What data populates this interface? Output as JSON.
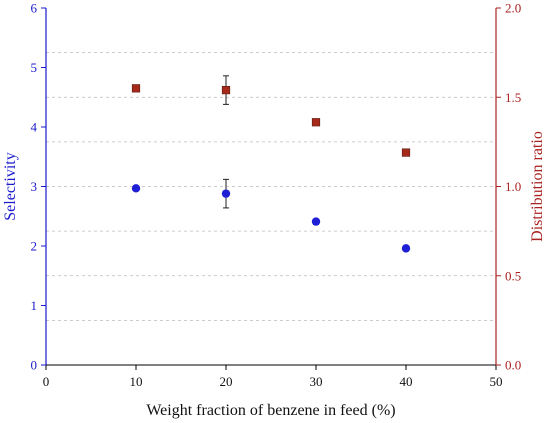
{
  "chart_data": {
    "type": "scatter",
    "title": "",
    "xlabel": "Weight fraction of benzene in feed (%)",
    "ylabel_left": "Selectivity",
    "ylabel_right": "Distribution ratio",
    "xlim": [
      0,
      50
    ],
    "ylim_left": [
      0,
      6
    ],
    "ylim_right": [
      0,
      2.0
    ],
    "x_ticks": [
      0,
      10,
      20,
      30,
      40,
      50
    ],
    "y_left_ticks": [
      0,
      1,
      2,
      3,
      4,
      5,
      6
    ],
    "y_right_ticks": [
      "0.0",
      "0.5",
      "1.0",
      "1.5",
      "2.0"
    ],
    "y_right_tick_values": [
      0,
      0.5,
      1.0,
      1.5,
      2.0
    ],
    "grid": "dashed",
    "colors": {
      "left_axis": "#1a1acc",
      "right_axis": "#aa2222",
      "selectivity_marker": "#1f1fd6",
      "distribution_marker": "#a52a1a",
      "grid": "#bbbbbb"
    },
    "series": [
      {
        "axis": "left",
        "marker": "circle",
        "x": [
          10,
          20,
          30,
          40
        ],
        "y": [
          2.97,
          2.88,
          2.41,
          1.96
        ],
        "error": [
          0,
          0.24,
          0,
          0
        ]
      },
      {
        "axis": "right",
        "marker": "square",
        "x": [
          10,
          20,
          30,
          40
        ],
        "y": [
          1.55,
          1.54,
          1.36,
          1.19
        ],
        "error": [
          0,
          0.08,
          0,
          0
        ]
      }
    ]
  }
}
